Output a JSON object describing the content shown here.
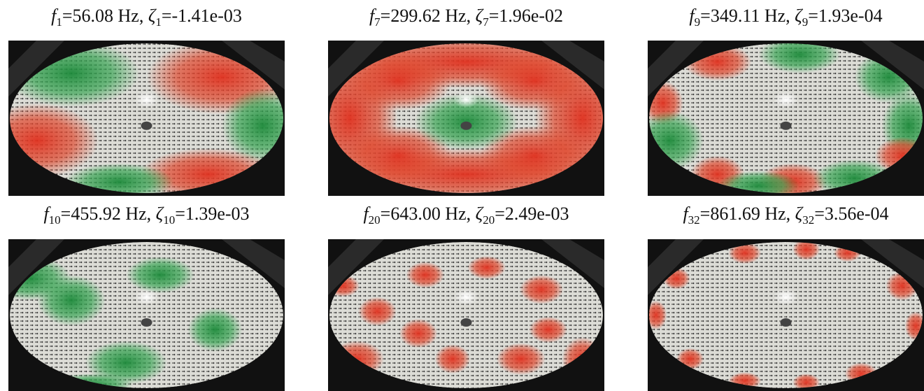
{
  "symbols": {
    "f": "f",
    "zeta": "ζ"
  },
  "panels": [
    {
      "f_sub": "1",
      "f_text": "=56.08 Hz, ",
      "z_sub": "1",
      "z_text": "=-1.41e-03"
    },
    {
      "f_sub": "7",
      "f_text": "=299.62 Hz, ",
      "z_sub": "7",
      "z_text": "=1.96e-02"
    },
    {
      "f_sub": "9",
      "f_text": "=349.11 Hz, ",
      "z_sub": "9",
      "z_text": "=1.93e-04"
    },
    {
      "f_sub": "10",
      "f_text": "=455.92 Hz, ",
      "z_sub": "10",
      "z_text": "=1.39e-03"
    },
    {
      "f_sub": "20",
      "f_text": "=643.00 Hz, ",
      "z_sub": "20",
      "z_text": "=2.49e-03"
    },
    {
      "f_sub": "32",
      "f_text": "=861.69 Hz, ",
      "z_sub": "32",
      "z_text": "=3.56e-04"
    }
  ]
}
